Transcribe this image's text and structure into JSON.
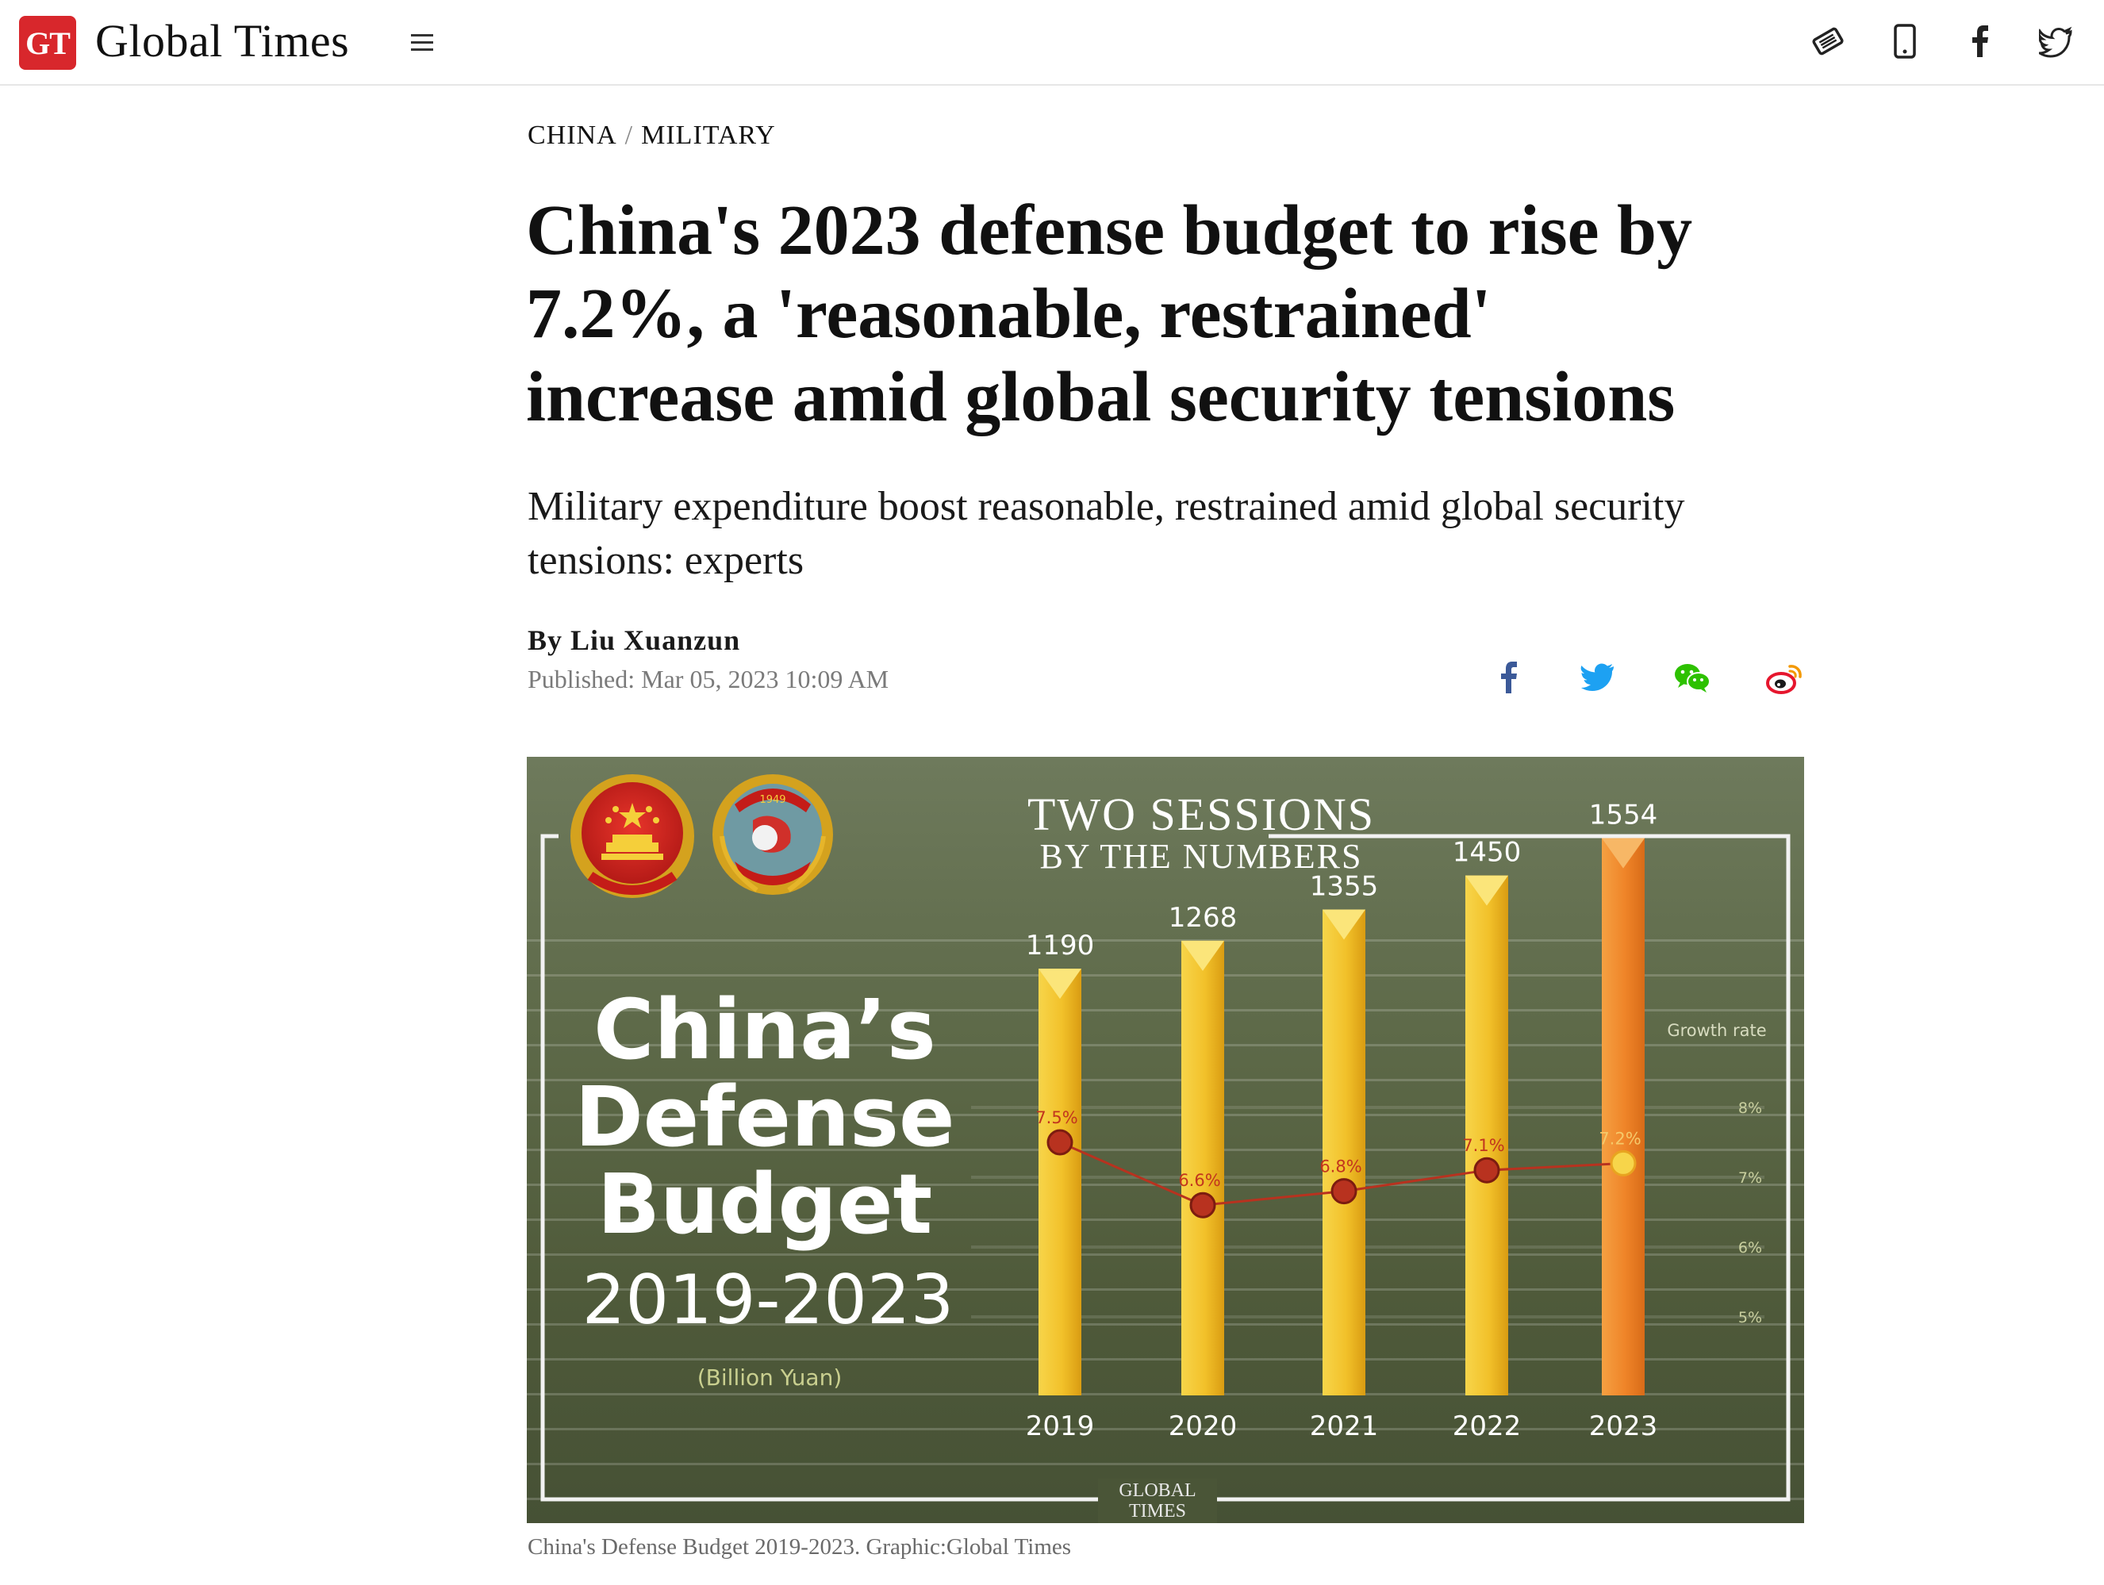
{
  "header": {
    "logo_text": "GT",
    "brand": "Global Times",
    "menu_icon": "hamburger-icon",
    "icons": [
      "ticket-icon",
      "mobile-icon",
      "facebook-icon",
      "twitter-icon"
    ]
  },
  "article": {
    "breadcrumb": [
      "CHINA",
      "MILITARY"
    ],
    "breadcrumb_sep": "/",
    "headline": "China's 2023 defense budget to rise by 7.2%, a 'reasonable, restrained' increase amid global security tensions",
    "subhead": "Military expenditure boost reasonable, restrained amid global security tensions: experts",
    "byline_prefix": "By",
    "author": "Liu Xuanzun",
    "published": "Published: Mar 05, 2023 10:09 AM",
    "share_icons": [
      "facebook-icon",
      "twitter-icon",
      "wechat-icon",
      "weibo-icon"
    ],
    "caption": "China's Defense Budget 2019-2023. Graphic:Global Times"
  },
  "colors": {
    "brand_red": "#d8272c",
    "facebook": "#3b5998",
    "twitter": "#1da1f2",
    "wechat": "#2dc100",
    "weibo": "#e6162d"
  },
  "graphic": {
    "banner_line1": "TWO SESSIONS",
    "banner_line2": "BY THE NUMBERS",
    "title_line1": "China’s",
    "title_line2": "Defense",
    "title_line3": "Budget",
    "years_range": "2019-2023",
    "unit": "(Billion Yuan)",
    "growth_label": "Growth rate",
    "watermark_line1": "GLOBAL",
    "watermark_line2": "TIMES",
    "emblem_year": "1949"
  },
  "chart_data": {
    "type": "bar",
    "categories": [
      "2019",
      "2020",
      "2021",
      "2022",
      "2023"
    ],
    "series": [
      {
        "values": [
          1190,
          1268,
          1355,
          1450,
          1554
        ]
      },
      {
        "name": "Growth rate",
        "type": "line",
        "values": [
          7.5,
          6.6,
          6.8,
          7.1,
          7.2
        ],
        "labels": [
          "7.5%",
          "6.6%",
          "6.8%",
          "7.1%",
          "7.2%"
        ]
      }
    ],
    "y2_ticks": [
      "8%",
      "7%",
      "6%",
      "5%"
    ],
    "y2_tick_values": [
      8,
      7,
      6,
      5
    ],
    "bar_colors": [
      "#f5c531",
      "#f5c531",
      "#f5c531",
      "#f5c531",
      "#f08a2e"
    ]
  }
}
